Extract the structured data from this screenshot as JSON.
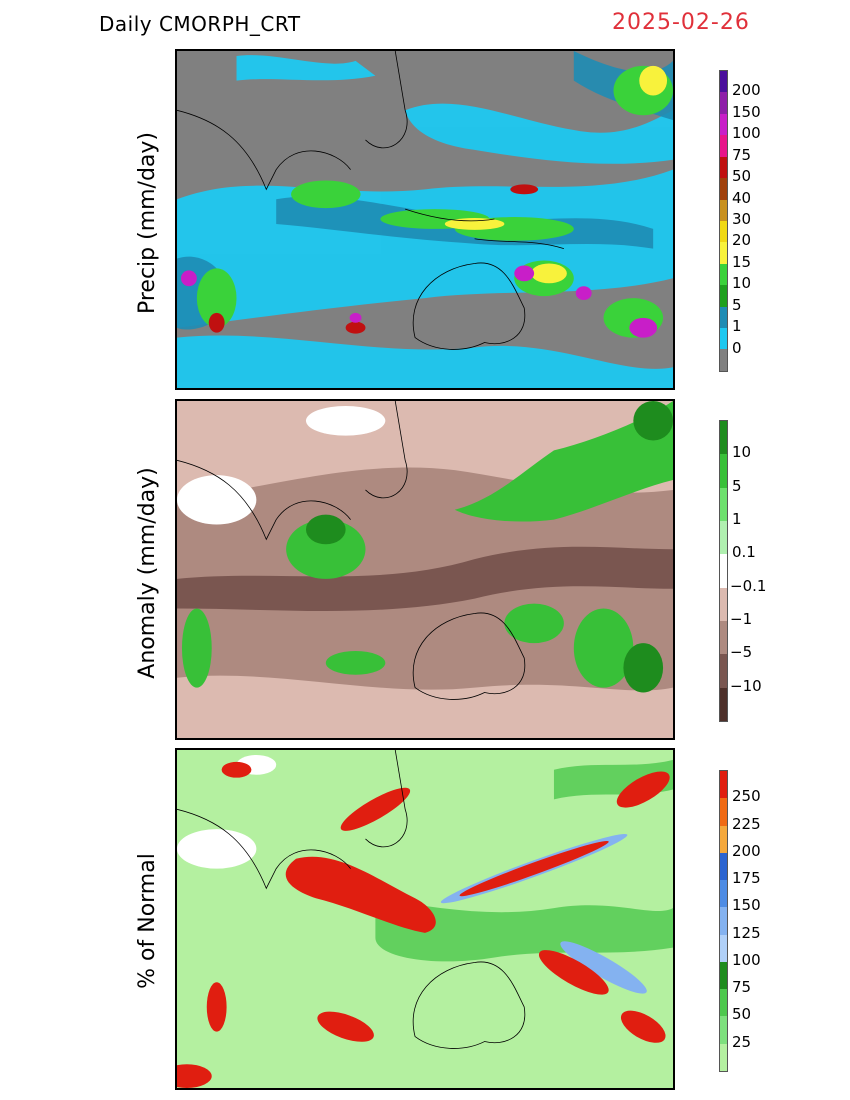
{
  "header": {
    "product": "Daily  CMORPH_CRT",
    "date": "2025-02-26",
    "date_color": "#e0303a"
  },
  "panels": [
    {
      "id": "precip",
      "label": "Precip  (mm/day)",
      "tick_labels": [
        "200",
        "150",
        "100",
        "75",
        "50",
        "40",
        "30",
        "20",
        "15",
        "10",
        "5",
        "1",
        "0"
      ],
      "colors": [
        "#4b0f9c",
        "#8e1ea8",
        "#c81ec8",
        "#e8148a",
        "#c01010",
        "#a0400c",
        "#c8901e",
        "#f0d814",
        "#f8f23c",
        "#3ad23a",
        "#1ea01e",
        "#1e8cb4",
        "#1ec8f0",
        "#808080"
      ]
    },
    {
      "id": "anomaly",
      "label": "Anomaly  (mm/day)",
      "tick_labels": [
        "10",
        "5",
        "1",
        "0.1",
        "−0.1",
        "−1",
        "−5",
        "−10"
      ],
      "colors": [
        "#1e8c1e",
        "#38c038",
        "#6ee06e",
        "#b0f0b0",
        "#ffffff",
        "#dcbab0",
        "#ae8a80",
        "#7a5650",
        "#4e302a"
      ]
    },
    {
      "id": "percent",
      "label": "% of  Normal",
      "tick_labels": [
        "250",
        "225",
        "200",
        "175",
        "150",
        "125",
        "100",
        "75",
        "50",
        "25"
      ],
      "colors": [
        "#e01e10",
        "#f06a14",
        "#f4a83c",
        "#2c64d0",
        "#4e8ce4",
        "#84b2f0",
        "#b0d0f8",
        "#1e8c1e",
        "#4ec84e",
        "#7ee07e",
        "#b4f0a0"
      ]
    }
  ]
}
